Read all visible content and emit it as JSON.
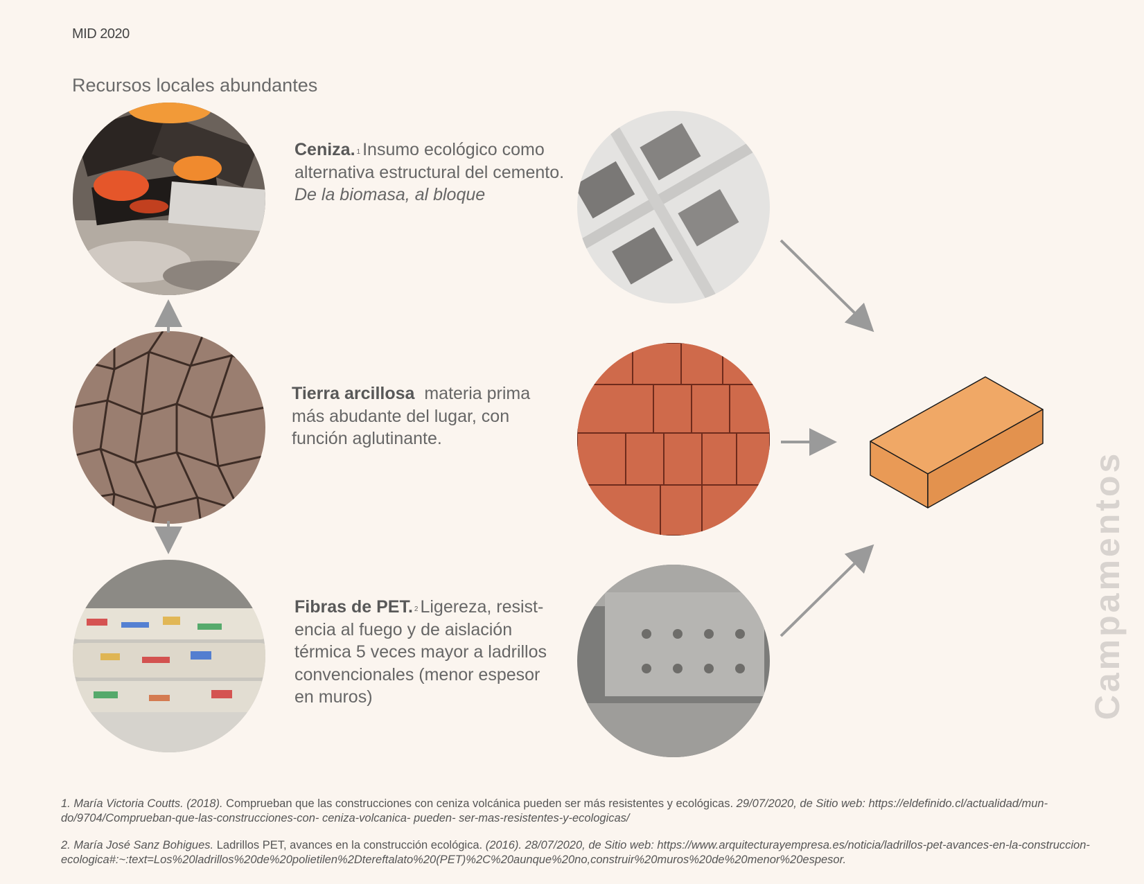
{
  "header": {
    "tag": "MID 2020"
  },
  "section_title": "Recursos locales abundantes",
  "resources": [
    {
      "title": "Ceniza.",
      "ref": "1",
      "text": "Insumo ecológico como alternativa estructural del cemento.",
      "subtitle": "De la biomasa, al bloque"
    },
    {
      "title": "Tierra arcillosa",
      "text": "materia prima más abudante del lugar, con función  aglutinante."
    },
    {
      "title": "Fibras de PET.",
      "ref": "2",
      "text": "Ligereza, resist- encia al fuego y de aislación térmica 5 veces mayor a ladrillos convencionales (menor espesor en muros)"
    }
  ],
  "side_label": "Campamentos",
  "footnotes": [
    {
      "authors": "1. María Victoria Coutts. (2018).",
      "title": "Comprueban que las construcciones con ceniza volcánica pueden ser más resistentes y ecológicas.",
      "access": "29/07/2020, de Sitio web: https://eldefinido.cl/actualidad/mun- do/9704/Comprueban-que-las-construcciones-con- ceniza-volcanica-   pueden- ser-mas-resistentes-y-ecologicas/"
    },
    {
      "authors": "2. María José Sanz Bohigues.",
      "title": "Ladrillos PET, avances en la construcción ecológica.",
      "access": "(2016).  28/07/2020, de Sitio web: https://www.arquitecturayempresa.es/noticia/ladrillos-pet-avances-en-la-construccion- ecologica#:~:text=Los%20ladrillos%20de%20polietilen%2Dtereftalato%20(PET)%2C%20aunque%20no,construir%20muros%20de%20menor%20espesor."
    }
  ],
  "colors": {
    "background": "#fbf5ef",
    "brick": "#e99a56",
    "arrow": "#9a9a9a",
    "side_label": "#d8d3cf"
  }
}
